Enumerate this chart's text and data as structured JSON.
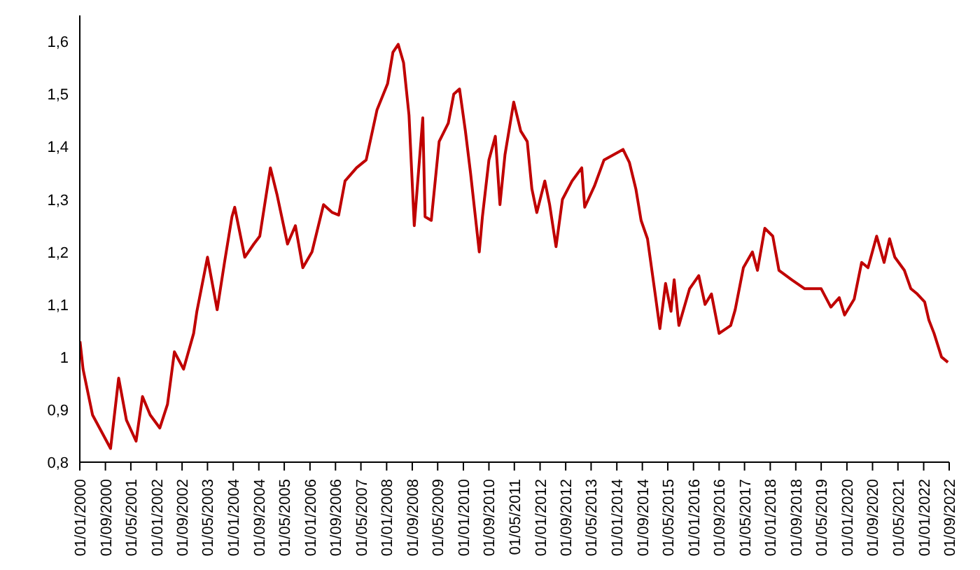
{
  "chart_data": {
    "type": "line",
    "x": [
      "2000-01-03",
      "2000-02-01",
      "2000-05-01",
      "2000-10-20",
      "2001-01-05",
      "2001-03-20",
      "2001-06-20",
      "2001-08-20",
      "2001-11-01",
      "2002-02-01",
      "2002-04-15",
      "2002-06-20",
      "2002-09-15",
      "2002-12-20",
      "2003-01-20",
      "2003-05-01",
      "2003-08-01",
      "2003-10-10",
      "2003-12-20",
      "2004-01-15",
      "2004-04-20",
      "2004-07-15",
      "2004-09-10",
      "2004-12-20",
      "2005-02-20",
      "2005-06-01",
      "2005-08-15",
      "2005-10-25",
      "2006-01-20",
      "2006-05-10",
      "2006-08-01",
      "2006-10-01",
      "2006-12-01",
      "2007-03-20",
      "2007-06-20",
      "2007-10-01",
      "2008-01-10",
      "2008-03-01",
      "2008-04-20",
      "2008-06-10",
      "2008-08-01",
      "2008-09-20",
      "2008-12-10",
      "2009-01-01",
      "2009-03-01",
      "2009-05-15",
      "2009-08-10",
      "2009-10-01",
      "2009-11-25",
      "2010-01-20",
      "2010-03-10",
      "2010-06-01",
      "2010-07-01",
      "2010-09-01",
      "2010-11-01",
      "2010-12-15",
      "2011-02-01",
      "2011-04-25",
      "2011-07-01",
      "2011-09-01",
      "2011-10-15",
      "2011-12-01",
      "2012-02-15",
      "2012-04-01",
      "2012-06-01",
      "2012-08-01",
      "2012-11-01",
      "2013-02-01",
      "2013-03-01",
      "2013-06-01",
      "2013-09-01",
      "2014-03-01",
      "2014-05-01",
      "2014-07-01",
      "2014-08-20",
      "2014-10-20",
      "2015-01-01",
      "2015-02-15",
      "2015-04-10",
      "2015-06-01",
      "2015-07-01",
      "2015-08-15",
      "2015-11-25",
      "2016-02-20",
      "2016-04-20",
      "2016-06-20",
      "2016-09-01",
      "2016-12-20",
      "2017-02-01",
      "2017-04-20",
      "2017-07-15",
      "2017-09-01",
      "2017-11-10",
      "2018-01-25",
      "2018-03-25",
      "2018-07-25",
      "2018-11-25",
      "2019-05-01",
      "2019-08-01",
      "2019-10-20",
      "2019-12-10",
      "2020-03-10",
      "2020-05-20",
      "2020-07-20",
      "2020-10-10",
      "2020-12-20",
      "2021-02-10",
      "2021-04-01",
      "2021-07-01",
      "2021-09-01",
      "2021-11-01",
      "2022-01-10",
      "2022-02-20",
      "2022-04-10",
      "2022-06-20",
      "2022-08-20"
    ],
    "series": [
      {
        "color": "#c00000",
        "values": [
          1.03,
          0.977,
          0.89,
          0.826,
          0.96,
          0.88,
          0.84,
          0.925,
          0.89,
          0.865,
          0.91,
          1.01,
          0.977,
          1.045,
          1.087,
          1.19,
          1.09,
          1.18,
          1.267,
          1.285,
          1.19,
          1.215,
          1.23,
          1.36,
          1.31,
          1.215,
          1.25,
          1.17,
          1.2,
          1.29,
          1.275,
          1.27,
          1.335,
          1.36,
          1.375,
          1.47,
          1.52,
          1.58,
          1.595,
          1.56,
          1.46,
          1.25,
          1.455,
          1.267,
          1.26,
          1.41,
          1.445,
          1.5,
          1.51,
          1.43,
          1.35,
          1.2,
          1.267,
          1.375,
          1.42,
          1.29,
          1.385,
          1.485,
          1.43,
          1.41,
          1.32,
          1.275,
          1.335,
          1.29,
          1.21,
          1.3,
          1.335,
          1.36,
          1.285,
          1.325,
          1.375,
          1.395,
          1.37,
          1.32,
          1.26,
          1.225,
          1.12,
          1.054,
          1.14,
          1.087,
          1.147,
          1.06,
          1.13,
          1.155,
          1.1,
          1.12,
          1.045,
          1.06,
          1.09,
          1.17,
          1.2,
          1.165,
          1.245,
          1.23,
          1.165,
          1.147,
          1.13,
          1.13,
          1.095,
          1.113,
          1.08,
          1.11,
          1.18,
          1.17,
          1.23,
          1.18,
          1.225,
          1.19,
          1.165,
          1.13,
          1.12,
          1.105,
          1.07,
          1.045,
          1.0,
          0.99
        ]
      }
    ],
    "xlim": [
      "2000-01-01",
      "2022-09-01"
    ],
    "xticks": [
      {
        "value": "2000-01-01",
        "label": "01/01/2000"
      },
      {
        "value": "2000-09-01",
        "label": "01/09/2000"
      },
      {
        "value": "2001-05-01",
        "label": "01/05/2001"
      },
      {
        "value": "2002-01-01",
        "label": "01/01/2002"
      },
      {
        "value": "2002-09-01",
        "label": "01/09/2002"
      },
      {
        "value": "2003-05-01",
        "label": "01/05/2003"
      },
      {
        "value": "2004-01-01",
        "label": "01/01/2004"
      },
      {
        "value": "2004-09-01",
        "label": "01/09/2004"
      },
      {
        "value": "2005-05-01",
        "label": "01/05/2005"
      },
      {
        "value": "2006-01-01",
        "label": "01/01/2006"
      },
      {
        "value": "2006-09-01",
        "label": "01/09/2006"
      },
      {
        "value": "2007-05-01",
        "label": "01/05/2007"
      },
      {
        "value": "2008-01-01",
        "label": "01/01/2008"
      },
      {
        "value": "2008-09-01",
        "label": "01/09/2008"
      },
      {
        "value": "2009-05-01",
        "label": "01/05/2009"
      },
      {
        "value": "2010-01-01",
        "label": "01/01/2010"
      },
      {
        "value": "2010-09-01",
        "label": "01/09/2010"
      },
      {
        "value": "2011-05-01",
        "label": "01/05/2011"
      },
      {
        "value": "2012-01-01",
        "label": "01/01/2012"
      },
      {
        "value": "2012-09-01",
        "label": "01/09/2012"
      },
      {
        "value": "2013-05-01",
        "label": "01/05/2013"
      },
      {
        "value": "2014-01-01",
        "label": "01/01/2014"
      },
      {
        "value": "2014-09-01",
        "label": "01/09/2014"
      },
      {
        "value": "2015-05-01",
        "label": "01/05/2015"
      },
      {
        "value": "2016-01-01",
        "label": "01/01/2016"
      },
      {
        "value": "2016-09-01",
        "label": "01/09/2016"
      },
      {
        "value": "2017-05-01",
        "label": "01/05/2017"
      },
      {
        "value": "2018-01-01",
        "label": "01/01/2018"
      },
      {
        "value": "2018-09-01",
        "label": "01/09/2018"
      },
      {
        "value": "2019-05-01",
        "label": "01/05/2019"
      },
      {
        "value": "2020-01-01",
        "label": "01/01/2020"
      },
      {
        "value": "2020-09-01",
        "label": "01/09/2020"
      },
      {
        "value": "2021-05-01",
        "label": "01/05/2021"
      },
      {
        "value": "2022-01-01",
        "label": "01/01/2022"
      },
      {
        "value": "2022-09-01",
        "label": "01/09/2022"
      }
    ],
    "ylim": [
      0.8,
      1.65
    ],
    "yticks": [
      {
        "value": 0.8,
        "label": "0,8"
      },
      {
        "value": 0.9,
        "label": "0,9"
      },
      1,
      {
        "value": 1.1,
        "label": "1,1"
      },
      {
        "value": 1.2,
        "label": "1,2"
      },
      {
        "value": 1.3,
        "label": "1,3"
      },
      {
        "value": 1.4,
        "label": "1,4"
      },
      {
        "value": 1.5,
        "label": "1,5"
      },
      {
        "value": 1.6,
        "label": "1,6"
      }
    ],
    "grid": false,
    "legend": false,
    "marker": "none",
    "line_style": "solid"
  }
}
